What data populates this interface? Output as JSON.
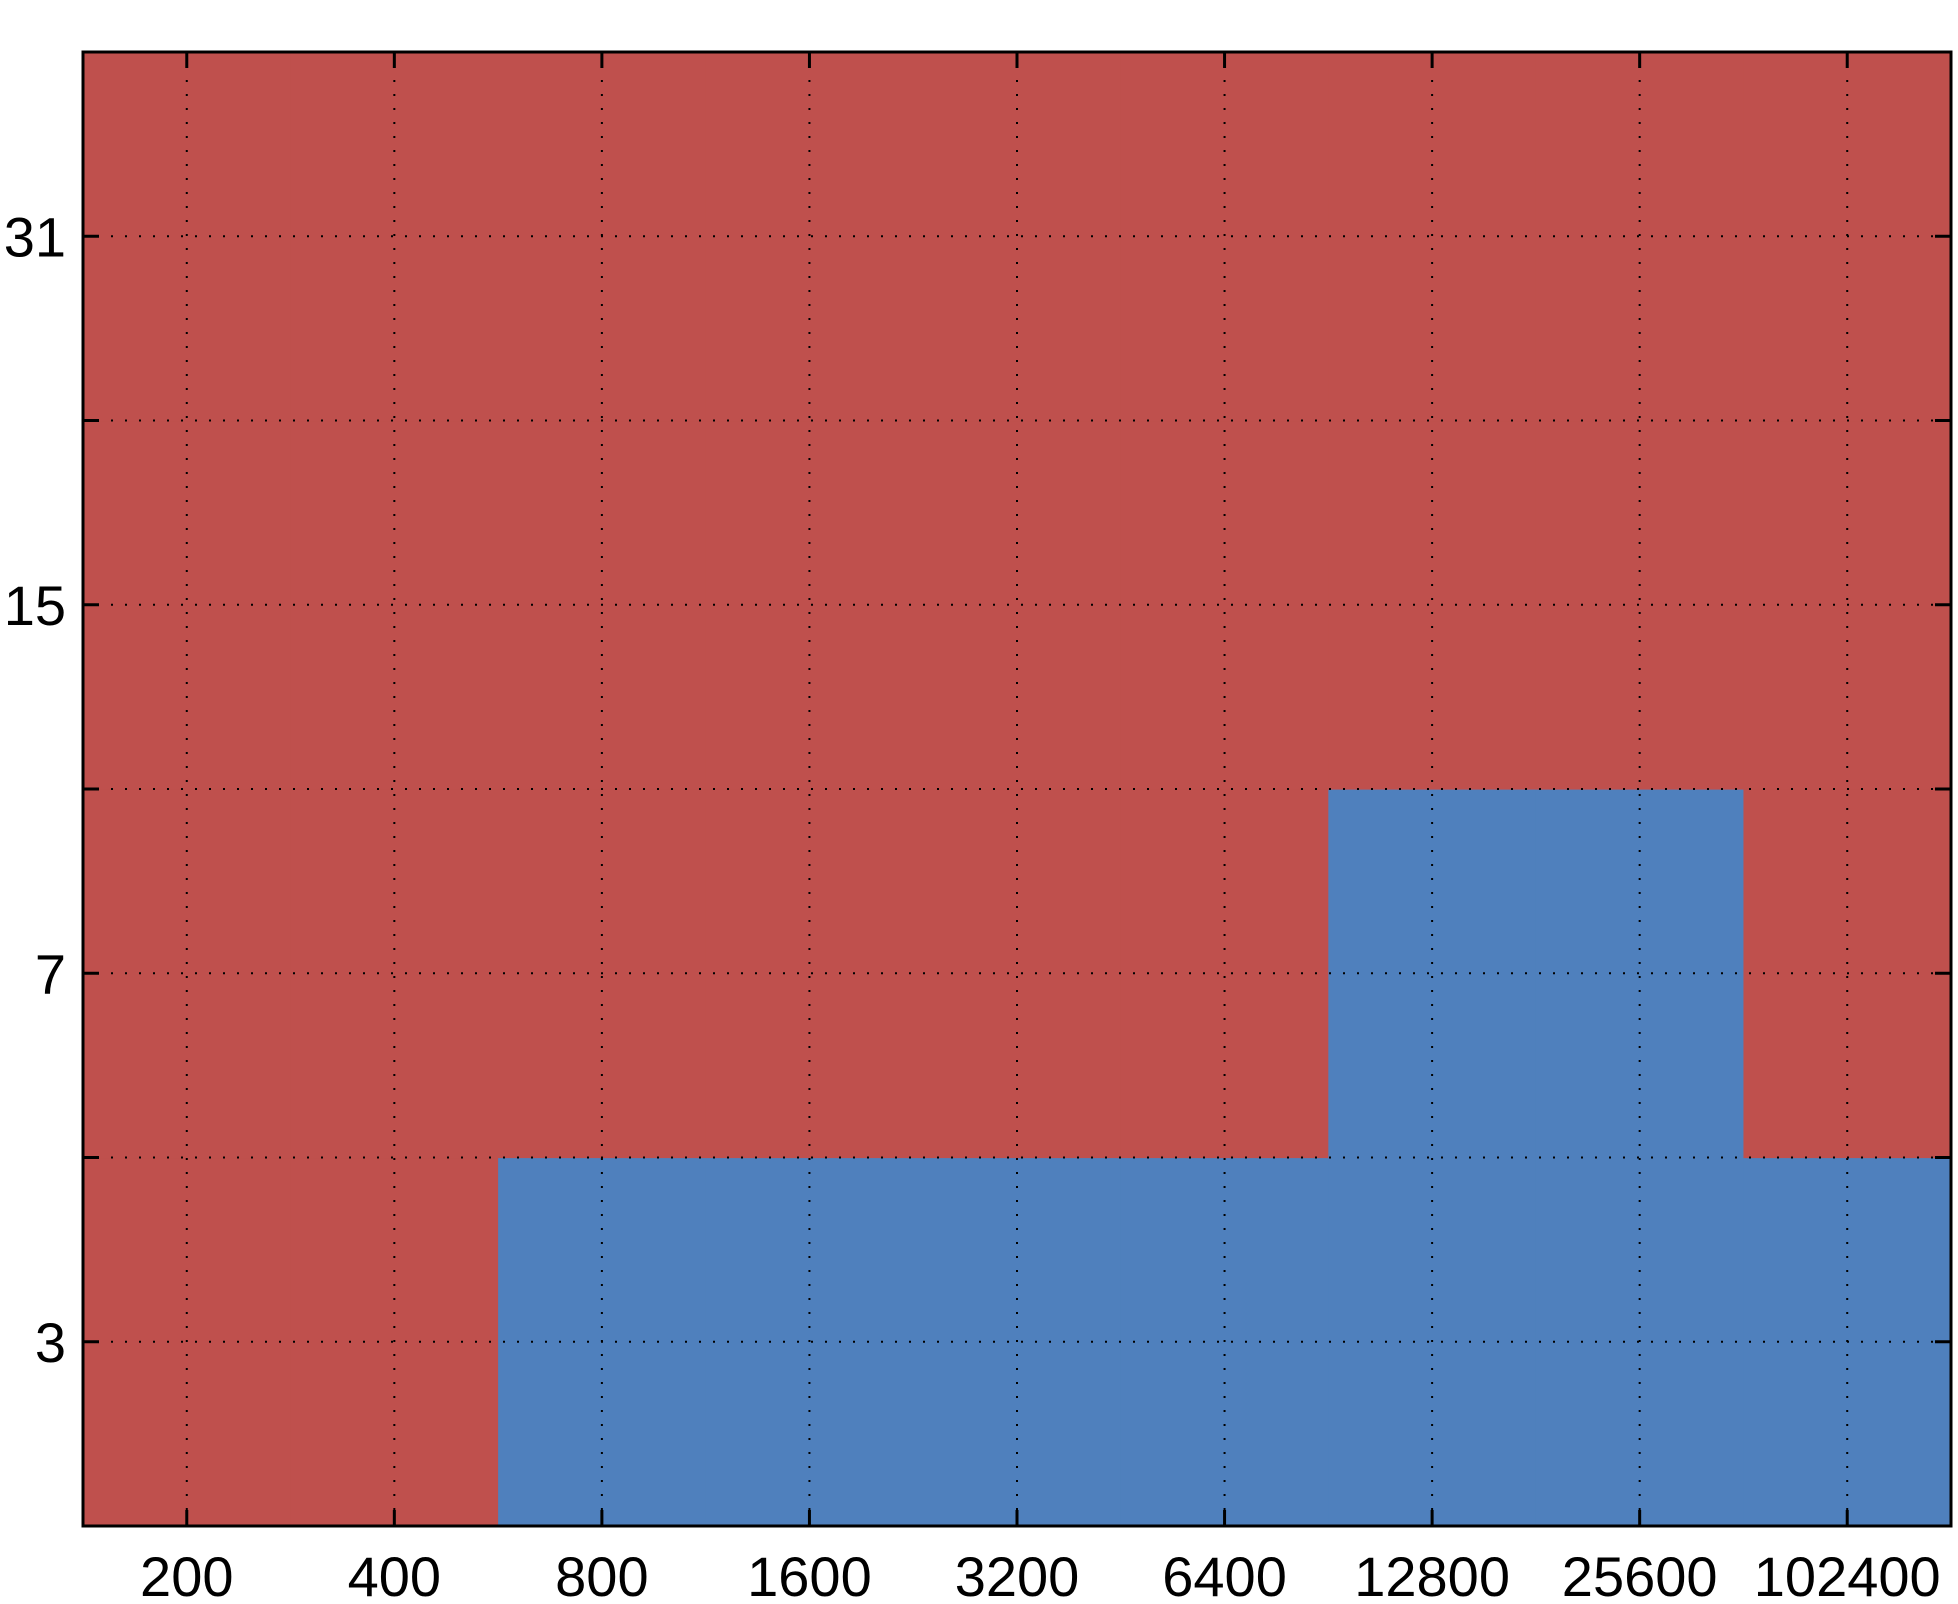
{
  "chart_data": {
    "type": "heatmap",
    "x_tick_labels": [
      "200",
      "400",
      "800",
      "1600",
      "3200",
      "6400",
      "12800",
      "25600",
      "102400"
    ],
    "y_tick_labels": [
      "3",
      "7",
      "15",
      "31"
    ],
    "grid": true,
    "colors": {
      "red": "#BF504D",
      "blue": "#4F80BD"
    },
    "rows_bottom_to_top": [
      [
        "red",
        "red",
        "blue",
        "blue",
        "blue",
        "blue",
        "blue",
        "blue",
        "blue"
      ],
      [
        "red",
        "red",
        "red",
        "red",
        "red",
        "red",
        "blue",
        "blue",
        "red"
      ],
      [
        "red",
        "red",
        "red",
        "red",
        "red",
        "red",
        "red",
        "red",
        "red"
      ],
      [
        "red",
        "red",
        "red",
        "red",
        "red",
        "red",
        "red",
        "red",
        "red"
      ]
    ]
  }
}
